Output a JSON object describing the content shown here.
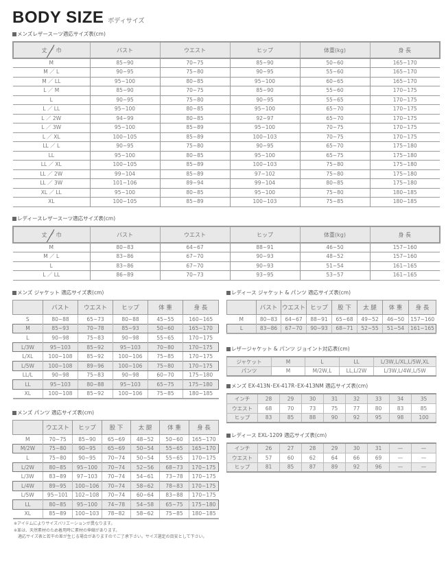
{
  "page": {
    "title": "BODY SIZE",
    "subtitle": "ボディサイズ"
  },
  "tables": [
    {
      "id": "mens-leather-suit",
      "caption": "メンズレザースーツ適応サイズ表(cm)",
      "headers": [
        "丈 ／ 巾",
        "バスト",
        "ウエスト",
        "ヒップ",
        "体重(kg)",
        "身 長"
      ],
      "rows": [
        [
          "M",
          "85~90",
          "70~75",
          "85~90",
          "50~60",
          "165~170"
        ],
        [
          "M ／ L",
          "90~95",
          "75~80",
          "90~95",
          "55~60",
          "165~170"
        ],
        [
          "M ／ LL",
          "95~100",
          "80~85",
          "95~100",
          "60~65",
          "165~170"
        ],
        [
          "L ／ M",
          "85~90",
          "70~75",
          "85~90",
          "55~60",
          "170~175"
        ],
        [
          "L",
          "90~95",
          "75~80",
          "90~95",
          "55~65",
          "170~175"
        ],
        [
          "L ／ LL",
          "95~100",
          "80~85",
          "95~100",
          "65~70",
          "170~175"
        ],
        [
          "L ／ 2W",
          "94~99",
          "80~85",
          "92~97",
          "65~70",
          "170~175"
        ],
        [
          "L ／ 3W",
          "95~100",
          "85~89",
          "95~100",
          "70~75",
          "170~175"
        ],
        [
          "L ／ XL",
          "100~105",
          "85~89",
          "100~103",
          "70~75",
          "170~175"
        ],
        [
          "LL ／ L",
          "90~95",
          "75~80",
          "90~95",
          "65~70",
          "175~180"
        ],
        [
          "LL",
          "95~100",
          "80~85",
          "95~100",
          "65~75",
          "175~180"
        ],
        [
          "LL ／ XL",
          "100~105",
          "85~89",
          "100~103",
          "75~80",
          "175~180"
        ],
        [
          "LL ／ 2W",
          "99~104",
          "85~89",
          "97~102",
          "75~80",
          "175~180"
        ],
        [
          "LL ／ 3W",
          "101~106",
          "89~94",
          "99~104",
          "80~85",
          "175~180"
        ],
        [
          "XL ／ LL",
          "95~100",
          "80~85",
          "95~100",
          "75~80",
          "180~185"
        ],
        [
          "XL",
          "100~105",
          "85~89",
          "100~103",
          "75~85",
          "180~185"
        ]
      ]
    },
    {
      "id": "ladies-leather-suit",
      "caption": "レディースレザースーツ適応サイズ表(cm)",
      "headers": [
        "丈 ／ 巾",
        "バスト",
        "ウエスト",
        "ヒップ",
        "体重(kg)",
        "身 長"
      ],
      "rows": [
        [
          "M",
          "80~83",
          "64~67",
          "88~91",
          "46~50",
          "157~160"
        ],
        [
          "M ／ L",
          "83~86",
          "67~70",
          "90~93",
          "48~52",
          "157~160"
        ],
        [
          "L",
          "83~86",
          "67~70",
          "90~93",
          "51~54",
          "161~165"
        ],
        [
          "L ／ LL",
          "86~89",
          "70~73",
          "93~95",
          "53~57",
          "161~165"
        ]
      ]
    },
    {
      "id": "mens-jacket",
      "caption": "メンズ ジャケット 適応サイズ表(cm)",
      "headers": [
        "",
        "バスト",
        "ウエスト",
        "ヒップ",
        "体 重",
        "身 長"
      ],
      "rows": [
        [
          "S",
          "80~88",
          "65~73",
          "80~88",
          "45~55",
          "160~165"
        ],
        [
          "M",
          "85~93",
          "70~78",
          "85~93",
          "50~60",
          "165~170"
        ],
        [
          "L",
          "90~98",
          "75~83",
          "90~98",
          "55~65",
          "170~175"
        ],
        [
          "L/3W",
          "95~103",
          "85~92",
          "95~103",
          "70~80",
          "170~175"
        ],
        [
          "L/XL",
          "100~108",
          "85~92",
          "100~106",
          "75~85",
          "170~175"
        ],
        [
          "L/5W",
          "100~108",
          "89~96",
          "100~106",
          "75~80",
          "170~175"
        ],
        [
          "LL/L",
          "90~98",
          "75~83",
          "90~98",
          "60~70",
          "175~180"
        ],
        [
          "LL",
          "95~103",
          "80~88",
          "95~103",
          "65~75",
          "175~180"
        ],
        [
          "XL",
          "100~108",
          "85~92",
          "100~106",
          "75~85",
          "180~185"
        ]
      ]
    },
    {
      "id": "mens-pants",
      "caption": "メンズ パンツ 適応サイズ表(cm)",
      "headers": [
        "",
        "ウエスト",
        "ヒップ",
        "股 下",
        "太 腿",
        "体 重",
        "身 長"
      ],
      "rows": [
        [
          "M",
          "70~75",
          "85~90",
          "65~69",
          "48~52",
          "50~60",
          "165~170"
        ],
        [
          "M/2W",
          "75~80",
          "90~95",
          "65~69",
          "50~54",
          "55~65",
          "165~170"
        ],
        [
          "L",
          "75~80",
          "90~95",
          "70~74",
          "50~54",
          "55~65",
          "170~175"
        ],
        [
          "L/2W",
          "80~85",
          "95~100",
          "70~74",
          "52~56",
          "68~73",
          "170~175"
        ],
        [
          "L/3W",
          "83~89",
          "97~103",
          "70~74",
          "54~61",
          "73~78",
          "170~175"
        ],
        [
          "L/4W",
          "89~95",
          "100~106",
          "70~74",
          "58~62",
          "78~83",
          "170~175"
        ],
        [
          "L/5W",
          "95~101",
          "102~108",
          "70~74",
          "60~64",
          "83~88",
          "170~175"
        ],
        [
          "LL",
          "80~85",
          "95~100",
          "74~78",
          "54~58",
          "65~75",
          "175~180"
        ],
        [
          "XL",
          "85~89",
          "100~103",
          "78~82",
          "58~62",
          "75~85",
          "180~185"
        ]
      ]
    },
    {
      "id": "ladies-jacket-pants",
      "caption": "レディース ジャケット & パンツ 適応サイズ表(cm)",
      "headers": [
        "",
        "バスト",
        "ウエスト",
        "ヒップ",
        "股 下",
        "太 腿",
        "体 重",
        "身 長"
      ],
      "rows": [
        [
          "M",
          "80~83",
          "64~67",
          "88~91",
          "65~68",
          "49~52",
          "46~50",
          "157~160"
        ],
        [
          "L",
          "83~86",
          "67~70",
          "90~93",
          "68~71",
          "52~55",
          "51~54",
          "161~165"
        ]
      ]
    },
    {
      "id": "joint-table",
      "caption": "レザージャケット & パンツ ジョイント対応表(cm)",
      "rows": [
        [
          "ジャケット",
          "M",
          "L",
          "LL",
          "L/3W,L/XL,L/5W,XL"
        ],
        [
          "パンツ",
          "M",
          "M/2W,L",
          "LL,L/2W",
          "L/3W,L/4W,L/5W"
        ]
      ]
    },
    {
      "id": "mens-ex",
      "caption": "メンズ EX-413N･EX-417R･EX-413NM 適応サイズ表(cm)",
      "rows": [
        [
          "インチ",
          "28",
          "29",
          "30",
          "31",
          "32",
          "33",
          "34",
          "35",
          "36"
        ],
        [
          "ウエスト",
          "68",
          "70",
          "73",
          "75",
          "77",
          "80",
          "83",
          "85",
          "88"
        ],
        [
          "ヒップ",
          "83",
          "85",
          "88",
          "90",
          "92",
          "95",
          "98",
          "100",
          "103"
        ]
      ]
    },
    {
      "id": "ladies-exl",
      "caption": "レディース EXL-1209 適応サイズ表(cm)",
      "rows": [
        [
          "インチ",
          "26",
          "27",
          "28",
          "29",
          "30",
          "31",
          "—",
          "—",
          "—"
        ],
        [
          "ウエスト",
          "57",
          "60",
          "62",
          "64",
          "66",
          "69",
          "—",
          "—",
          "—"
        ],
        [
          "ヒップ",
          "81",
          "85",
          "87",
          "89",
          "92",
          "96",
          "—",
          "—",
          "—"
        ]
      ]
    }
  ],
  "notes": [
    "※アイテムによりサイズバリエーションが異なります。",
    "※革は、天然素材のため着用時に素材の伸縮があります。",
    "　適応サイズ表と若干の差が生じる場合がありますのでご了承下さい。サイズ選定の目安として下さい。"
  ]
}
